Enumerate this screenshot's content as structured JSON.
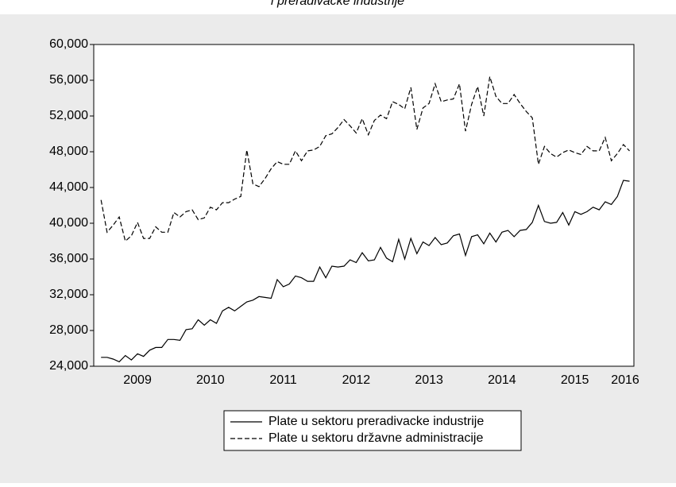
{
  "chart_data": {
    "type": "line",
    "title": "i preradivacke industrije",
    "x": [
      2009.0,
      2009.0833,
      2009.1667,
      2009.25,
      2009.3333,
      2009.4167,
      2009.5,
      2009.5833,
      2009.6667,
      2009.75,
      2009.8333,
      2009.9167,
      2010.0,
      2010.0833,
      2010.1667,
      2010.25,
      2010.3333,
      2010.4167,
      2010.5,
      2010.5833,
      2010.6667,
      2010.75,
      2010.8333,
      2010.9167,
      2011.0,
      2011.0833,
      2011.1667,
      2011.25,
      2011.3333,
      2011.4167,
      2011.5,
      2011.5833,
      2011.6667,
      2011.75,
      2011.8333,
      2011.9167,
      2012.0,
      2012.0833,
      2012.1667,
      2012.25,
      2012.3333,
      2012.4167,
      2012.5,
      2012.5833,
      2012.6667,
      2012.75,
      2012.8333,
      2012.9167,
      2013.0,
      2013.0833,
      2013.1667,
      2013.25,
      2013.3333,
      2013.4167,
      2013.5,
      2013.5833,
      2013.6667,
      2013.75,
      2013.8333,
      2013.9167,
      2014.0,
      2014.0833,
      2014.1667,
      2014.25,
      2014.3333,
      2014.4167,
      2014.5,
      2014.5833,
      2014.6667,
      2014.75,
      2014.8333,
      2014.9167,
      2015.0,
      2015.0833,
      2015.1667,
      2015.25,
      2015.3333,
      2015.4167,
      2015.5,
      2015.5833,
      2015.6667,
      2015.75,
      2015.8333,
      2015.9167,
      2016.0,
      2016.0833,
      2016.1667,
      2016.25
    ],
    "series": [
      {
        "name": "Plate u sektoru preradivacke industrije",
        "color": "#000000",
        "dash": "solid",
        "values": [
          25000,
          25000,
          24800,
          24500,
          25200,
          24700,
          25400,
          25100,
          25800,
          26100,
          26100,
          27000,
          27000,
          26900,
          28100,
          28200,
          29200,
          28600,
          29200,
          28800,
          30200,
          30600,
          30200,
          30700,
          31200,
          31400,
          31800,
          31700,
          31600,
          33700,
          32900,
          33200,
          34100,
          33900,
          33500,
          33500,
          35100,
          33900,
          35200,
          35100,
          35200,
          35900,
          35600,
          36700,
          35800,
          35900,
          37300,
          36100,
          35700,
          38200,
          36000,
          38300,
          36600,
          37900,
          37500,
          38400,
          37600,
          37800,
          38600,
          38800,
          36400,
          38500,
          38700,
          37700,
          38900,
          37900,
          39000,
          39200,
          38500,
          39200,
          39300,
          40100,
          42000,
          40200,
          40000,
          40100,
          41200,
          39800,
          41300,
          41000,
          41300,
          41800,
          41500,
          42400,
          42100,
          43000,
          44800,
          44700
        ]
      },
      {
        "name": "Plate u sektoru državne administracije",
        "color": "#000000",
        "dash": "dashed",
        "values": [
          42600,
          39000,
          39800,
          40700,
          38000,
          38600,
          40100,
          38300,
          38300,
          39600,
          39000,
          39000,
          41200,
          40700,
          41300,
          41500,
          40400,
          40600,
          41800,
          41500,
          42300,
          42300,
          42700,
          43000,
          48200,
          44400,
          44100,
          45000,
          46100,
          46900,
          46600,
          46600,
          48100,
          47000,
          48100,
          48200,
          48600,
          49800,
          50000,
          50700,
          51600,
          50900,
          50100,
          51700,
          49900,
          51500,
          52100,
          51700,
          53600,
          53300,
          52800,
          55200,
          50500,
          52900,
          53400,
          55600,
          53600,
          53800,
          53900,
          55600,
          50300,
          53300,
          55300,
          52000,
          56400,
          54200,
          53400,
          53400,
          54400,
          53400,
          52500,
          51800,
          46600,
          48600,
          47800,
          47400,
          47900,
          48200,
          47900,
          47700,
          48600,
          48100,
          48100,
          49600,
          47000,
          47800,
          48800,
          48100
        ]
      }
    ],
    "xlim": [
      2008.9,
      2016.31
    ],
    "xticks": [
      {
        "value": 2009.5,
        "label": "2009"
      },
      {
        "value": 2010.5,
        "label": "2010"
      },
      {
        "value": 2011.5,
        "label": "2011"
      },
      {
        "value": 2012.5,
        "label": "2012"
      },
      {
        "value": 2013.5,
        "label": "2013"
      },
      {
        "value": 2014.5,
        "label": "2014"
      },
      {
        "value": 2015.5,
        "label": "2015"
      },
      {
        "value": 2016.19,
        "label": "2016"
      }
    ],
    "ylim": [
      24000,
      60000
    ],
    "yticks": [
      {
        "value": 24000,
        "label": "24,000"
      },
      {
        "value": 28000,
        "label": "28,000"
      },
      {
        "value": 32000,
        "label": "32,000"
      },
      {
        "value": 36000,
        "label": "36,000"
      },
      {
        "value": 40000,
        "label": "40,000"
      },
      {
        "value": 44000,
        "label": "44,000"
      },
      {
        "value": 48000,
        "label": "48,000"
      },
      {
        "value": 52000,
        "label": "52,000"
      },
      {
        "value": 56000,
        "label": "56,000"
      },
      {
        "value": 60000,
        "label": "60,000"
      }
    ],
    "grid": false,
    "legend": "bottom"
  }
}
